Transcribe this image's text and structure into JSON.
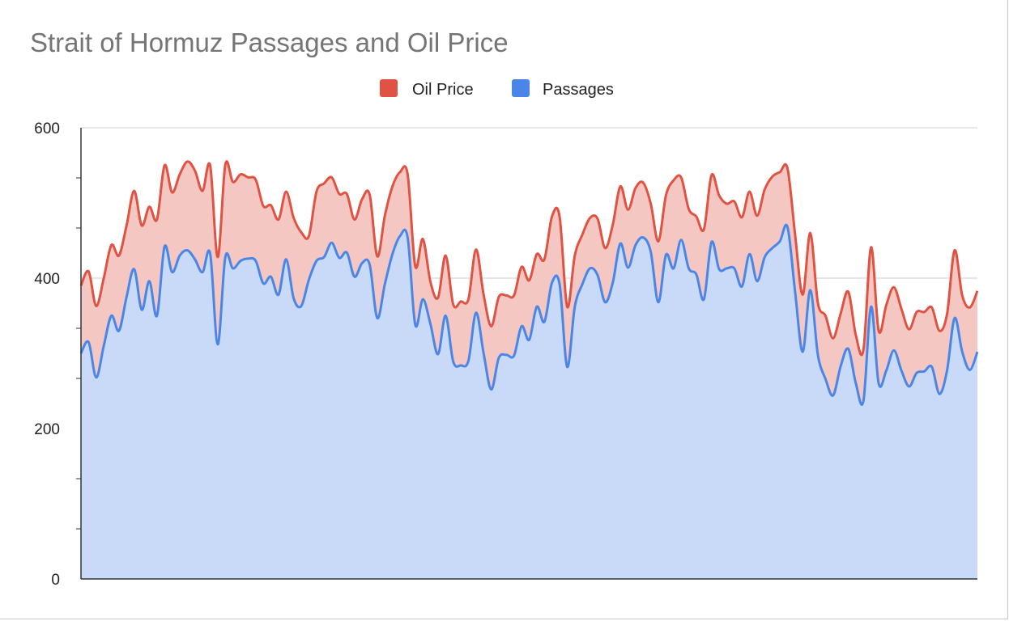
{
  "chart_data": {
    "type": "area",
    "stacked": true,
    "title": "Strait of Hormuz Passages and Oil Price",
    "legend_position": "top",
    "y_ticks": [
      0,
      200,
      400,
      600
    ],
    "ylim": [
      0,
      600
    ],
    "grid": true,
    "series": [
      {
        "name": "Passages",
        "color": "#4a86e8",
        "fill": "#c9daf8",
        "values": [
          300,
          315,
          268,
          310,
          350,
          330,
          375,
          412,
          358,
          396,
          350,
          442,
          408,
          430,
          437,
          425,
          408,
          433,
          312,
          428,
          413,
          423,
          426,
          423,
          393,
          402,
          378,
          425,
          373,
          363,
          398,
          423,
          428,
          447,
          427,
          434,
          402,
          420,
          418,
          347,
          392,
          432,
          456,
          454,
          338,
          372,
          339,
          299,
          350,
          289,
          284,
          290,
          354,
          300,
          252,
          294,
          298,
          297,
          336,
          318,
          362,
          342,
          394,
          392,
          282,
          362,
          392,
          413,
          404,
          368,
          394,
          446,
          414,
          444,
          454,
          435,
          368,
          431,
          413,
          451,
          413,
          405,
          372,
          448,
          412,
          413,
          413,
          389,
          432,
          396,
          428,
          440,
          449,
          468,
          382,
          302,
          384,
          298,
          266,
          244,
          283,
          306,
          260,
          237,
          362,
          260,
          277,
          304,
          277,
          256,
          274,
          276,
          282,
          246,
          277,
          347,
          302,
          278,
          302
        ]
      },
      {
        "name": "Oil Price",
        "color": "#e05242",
        "fill": "#f4c7c3",
        "values": [
          90,
          94,
          95,
          90,
          94,
          100,
          95,
          104,
          112,
          99,
          128,
          108,
          106,
          108,
          118,
          118,
          108,
          117,
          116,
          123,
          115,
          115,
          108,
          108,
          103,
          95,
          100,
          90,
          107,
          98,
          58,
          92,
          98,
          87,
          85,
          78,
          76,
          85,
          93,
          82,
          91,
          90,
          85,
          84,
          78,
          80,
          56,
          75,
          80,
          76,
          85,
          82,
          84,
          78,
          84,
          81,
          79,
          80,
          79,
          79,
          70,
          83,
          88,
          90,
          80,
          68,
          66,
          67,
          75,
          72,
          77,
          76,
          77,
          76,
          73,
          64,
          81,
          79,
          117,
          83,
          79,
          77,
          93,
          89,
          98,
          86,
          89,
          92,
          83,
          87,
          90,
          95,
          92,
          78,
          76,
          76,
          76,
          69,
          84,
          76,
          70,
          76,
          64,
          68,
          79,
          70,
          87,
          84,
          82,
          76,
          81,
          79,
          79,
          84,
          75,
          90,
          75,
          83,
          81
        ]
      }
    ]
  }
}
